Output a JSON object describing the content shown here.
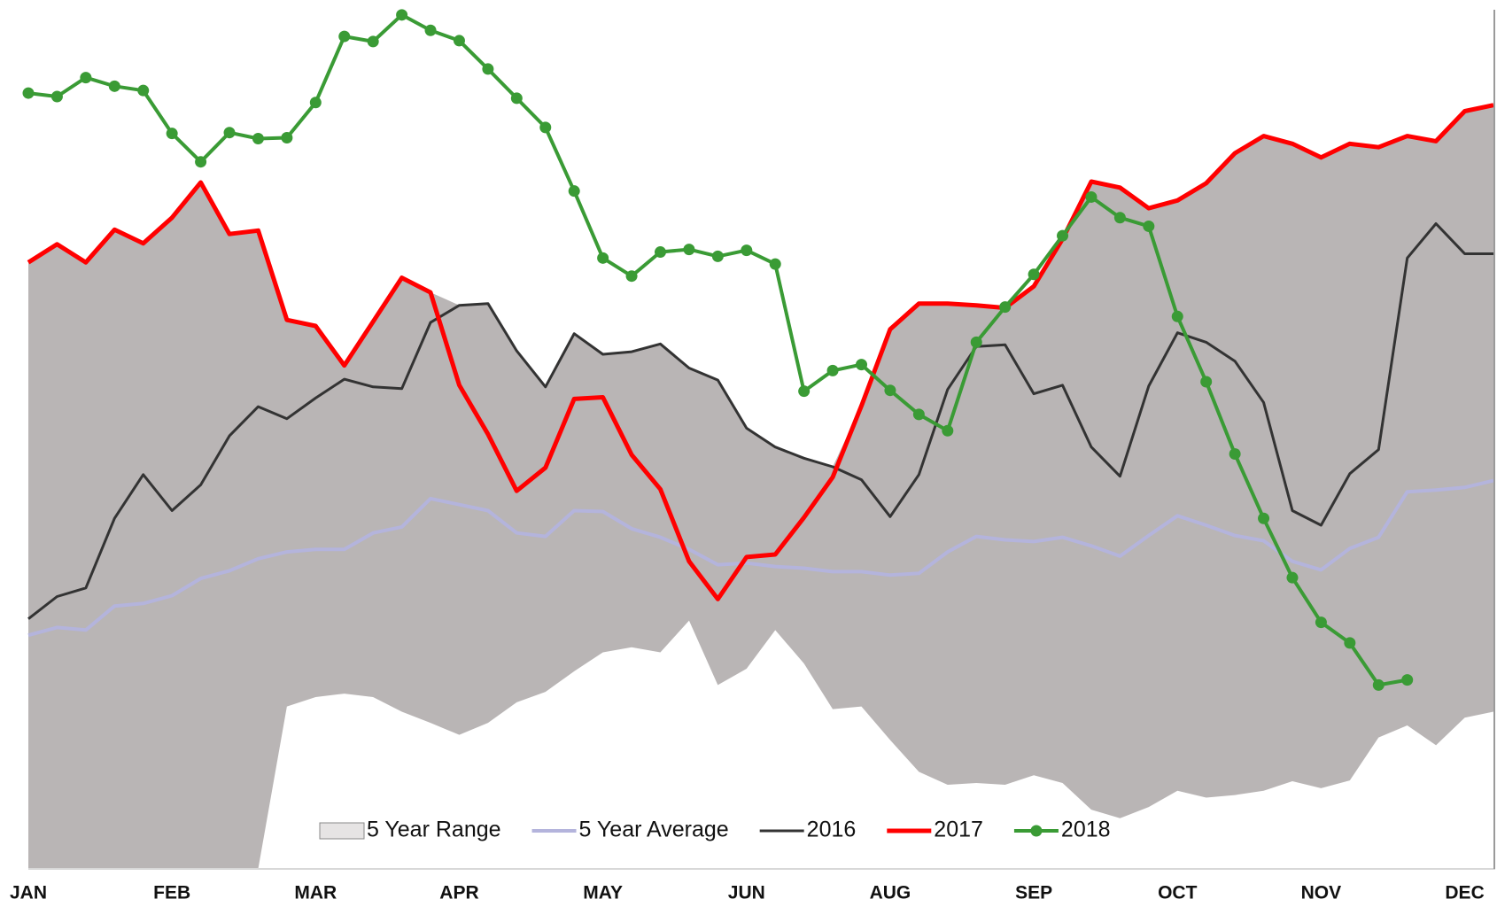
{
  "chart_data": {
    "type": "line",
    "categories": [
      "JAN",
      null,
      null,
      null,
      null,
      "FEB",
      null,
      null,
      null,
      null,
      "MAR",
      null,
      null,
      null,
      null,
      "APR",
      null,
      null,
      null,
      null,
      "MAY",
      null,
      null,
      null,
      null,
      "JUN",
      null,
      null,
      null,
      null,
      "AUG",
      null,
      null,
      null,
      null,
      "SEP",
      null,
      null,
      null,
      null,
      "OCT",
      null,
      null,
      null,
      null,
      "NOV",
      null,
      null,
      null,
      null,
      "DEC",
      null
    ],
    "ylim": [
      0,
      100
    ],
    "legend": "bottom",
    "series": [
      {
        "name": "5 Year Range",
        "type": "range",
        "color": "#b9b5b5",
        "lower": [
          0,
          0,
          0,
          0,
          0,
          0,
          0,
          0,
          0,
          18.9,
          20.0,
          20.4,
          20.0,
          18.3,
          17.0,
          15.6,
          17.0,
          19.4,
          20.6,
          23.0,
          25.2,
          25.8,
          25.2,
          28.9,
          21.4,
          23.3,
          27.8,
          23.9,
          18.6,
          18.9,
          15.0,
          11.3,
          9.8,
          10.0,
          9.8,
          10.9,
          10.0,
          6.9,
          5.9,
          7.2,
          9.1,
          8.3,
          8.6,
          9.1,
          10.2,
          9.4,
          10.3,
          15.3,
          16.7,
          14.4,
          17.6,
          18.3
        ],
        "upper": [
          70.6,
          72.7,
          70.6,
          74.4,
          72.8,
          75.8,
          79.9,
          73.9,
          74.3,
          63.9,
          63.2,
          58.6,
          63.7,
          68.8,
          67.1,
          65.6,
          65.8,
          60.3,
          56.1,
          62.3,
          59.9,
          60.2,
          61.1,
          58.3,
          56.9,
          51.3,
          49.1,
          47.8,
          46.8,
          53.9,
          62.8,
          65.8,
          65.8,
          65.6,
          65.3,
          67.8,
          73.3,
          80.0,
          79.3,
          76.9,
          77.8,
          79.8,
          83.3,
          85.3,
          84.4,
          82.8,
          84.4,
          84.0,
          85.3,
          84.7,
          88.2,
          88.9
        ]
      },
      {
        "name": "5 Year Average",
        "type": "line",
        "color": "#b4b4dc",
        "values": [
          27.2,
          28.1,
          27.8,
          30.6,
          30.9,
          31.8,
          33.8,
          34.7,
          36.1,
          36.9,
          37.2,
          37.2,
          39.1,
          39.8,
          43.1,
          42.4,
          41.7,
          39.1,
          38.7,
          41.7,
          41.6,
          39.6,
          38.6,
          37.2,
          35.4,
          35.6,
          35.2,
          35.0,
          34.6,
          34.6,
          34.2,
          34.4,
          36.9,
          38.7,
          38.3,
          38.1,
          38.6,
          37.6,
          36.4,
          38.8,
          41.1,
          40.0,
          38.8,
          38.2,
          35.8,
          34.8,
          37.3,
          38.6,
          43.9,
          44.1,
          44.4,
          45.2
        ]
      },
      {
        "name": "2016",
        "type": "line",
        "color": "#333333",
        "values": [
          29.1,
          31.7,
          32.7,
          40.8,
          45.9,
          41.7,
          44.7,
          50.4,
          53.8,
          52.4,
          54.8,
          57.0,
          56.1,
          55.9,
          63.6,
          65.6,
          65.8,
          60.3,
          56.1,
          62.3,
          59.9,
          60.2,
          61.1,
          58.3,
          56.9,
          51.3,
          49.1,
          47.8,
          46.8,
          45.3,
          41.0,
          45.9,
          55.8,
          60.8,
          61.0,
          55.3,
          56.3,
          49.1,
          45.7,
          56.2,
          62.4,
          61.3,
          59.1,
          54.3,
          41.7,
          40.0,
          46.0,
          48.8,
          71.1,
          75.1,
          71.6,
          71.6
        ]
      },
      {
        "name": "2017",
        "type": "line",
        "color": "#ff0000",
        "values": [
          70.6,
          72.7,
          70.6,
          74.4,
          72.8,
          75.8,
          79.9,
          73.9,
          74.3,
          63.9,
          63.2,
          58.6,
          63.7,
          68.8,
          67.1,
          56.3,
          50.6,
          44.0,
          46.7,
          54.7,
          54.9,
          48.2,
          44.2,
          35.8,
          31.4,
          36.3,
          36.6,
          40.9,
          45.6,
          53.9,
          62.8,
          65.8,
          65.8,
          65.6,
          65.3,
          67.8,
          73.3,
          80.0,
          79.3,
          76.9,
          77.8,
          79.8,
          83.3,
          85.3,
          84.4,
          82.8,
          84.4,
          84.0,
          85.3,
          84.7,
          88.2,
          88.9
        ]
      },
      {
        "name": "2018",
        "type": "line",
        "color": "#3a9b35",
        "marker": true,
        "values": [
          90.3,
          89.9,
          92.1,
          91.1,
          90.6,
          85.6,
          82.3,
          85.7,
          85.0,
          85.1,
          89.2,
          96.9,
          96.3,
          99.4,
          97.6,
          96.4,
          93.1,
          89.7,
          86.3,
          78.9,
          71.1,
          69.0,
          71.8,
          72.1,
          71.3,
          72.0,
          70.4,
          55.6,
          58.0,
          58.7,
          55.7,
          52.9,
          51.0,
          61.3,
          65.4,
          69.2,
          73.7,
          78.2,
          75.8,
          74.8,
          64.3,
          56.7,
          48.3,
          40.8,
          33.9,
          28.7,
          26.3,
          21.4,
          22.0,
          null,
          null,
          null
        ]
      }
    ]
  }
}
